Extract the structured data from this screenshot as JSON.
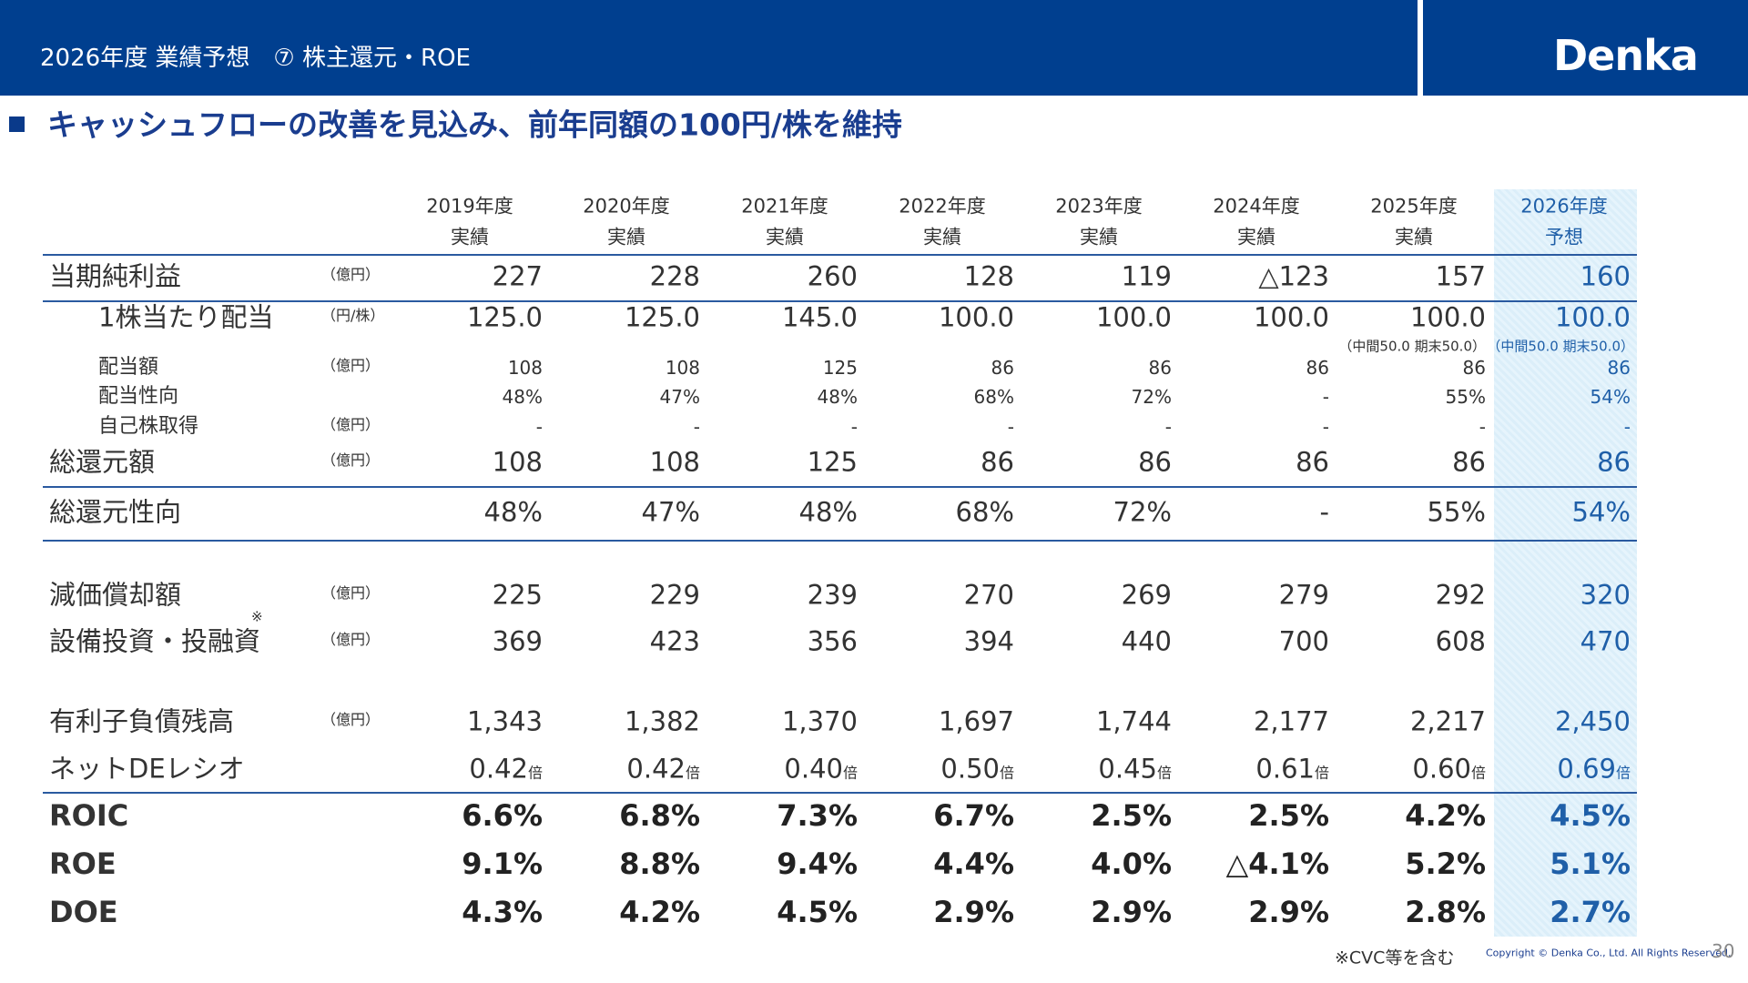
{
  "header": {
    "title": "2026年度 業績予想　⑦ 株主還元・ROE",
    "logo": "Denka"
  },
  "heading": "キャッシュフローの改善を見込み、前年同額の100円/株を維持",
  "table": {
    "columns": [
      {
        "year": "2019年度",
        "kind": "実績"
      },
      {
        "year": "2020年度",
        "kind": "実績"
      },
      {
        "year": "2021年度",
        "kind": "実績"
      },
      {
        "year": "2022年度",
        "kind": "実績"
      },
      {
        "year": "2023年度",
        "kind": "実績"
      },
      {
        "year": "2024年度",
        "kind": "実績"
      },
      {
        "year": "2025年度",
        "kind": "実績"
      },
      {
        "year": "2026年度",
        "kind": "予想"
      }
    ],
    "rows": [
      {
        "label": "当期純利益",
        "unit": "（億円）",
        "values": [
          "227",
          "228",
          "260",
          "128",
          "119",
          "△123",
          "157",
          "160"
        ]
      },
      {
        "label": "1株当たり配当",
        "unit": "（円/株）",
        "values": [
          "125.0",
          "125.0",
          "145.0",
          "100.0",
          "100.0",
          "100.0",
          "100.0",
          "100.0"
        ],
        "breakdown": {
          "6": "（中間50.0 期末50.0）",
          "7": "（中間50.0 期末50.0）"
        }
      },
      {
        "label": "配当額",
        "unit": "（億円）",
        "values": [
          "108",
          "108",
          "125",
          "86",
          "86",
          "86",
          "86",
          "86"
        ]
      },
      {
        "label": "配当性向",
        "values": [
          "48%",
          "47%",
          "48%",
          "68%",
          "72%",
          "-",
          "55%",
          "54%"
        ]
      },
      {
        "label": "自己株取得",
        "unit": "（億円）",
        "values": [
          "-",
          "-",
          "-",
          "-",
          "-",
          "-",
          "-",
          "-"
        ]
      },
      {
        "label": "総還元額",
        "unit": "（億円）",
        "values": [
          "108",
          "108",
          "125",
          "86",
          "86",
          "86",
          "86",
          "86"
        ]
      },
      {
        "label": "総還元性向",
        "values": [
          "48%",
          "47%",
          "48%",
          "68%",
          "72%",
          "-",
          "55%",
          "54%"
        ]
      },
      {
        "label": "減価償却額",
        "unit": "（億円）",
        "values": [
          "225",
          "229",
          "239",
          "270",
          "269",
          "279",
          "292",
          "320"
        ]
      },
      {
        "label": "設備投資・投融資",
        "mark": "※",
        "unit": "（億円）",
        "values": [
          "369",
          "423",
          "356",
          "394",
          "440",
          "700",
          "608",
          "470"
        ]
      },
      {
        "label": "有利子負債残高",
        "unit": "（億円）",
        "values": [
          "1,343",
          "1,382",
          "1,370",
          "1,697",
          "1,744",
          "2,177",
          "2,217",
          "2,450"
        ]
      },
      {
        "label": "ネットDEレシオ",
        "suffix": "倍",
        "values": [
          "0.42",
          "0.42",
          "0.40",
          "0.50",
          "0.45",
          "0.61",
          "0.60",
          "0.69"
        ]
      },
      {
        "label": "ROIC",
        "values": [
          "6.6%",
          "6.8%",
          "7.3%",
          "6.7%",
          "2.5%",
          "2.5%",
          "4.2%",
          "4.5%"
        ]
      },
      {
        "label": "ROE",
        "values": [
          "9.1%",
          "8.8%",
          "9.4%",
          "4.4%",
          "4.0%",
          "△4.1%",
          "5.2%",
          "5.1%"
        ]
      },
      {
        "label": "DOE",
        "values": [
          "4.3%",
          "4.2%",
          "4.5%",
          "2.9%",
          "2.9%",
          "2.9%",
          "2.8%",
          "2.7%"
        ]
      }
    ]
  },
  "footer": {
    "note": "※CVC等を含む",
    "copyright": "Copyright © Denka Co., Ltd. All Rights Reserved.",
    "page": "30"
  }
}
